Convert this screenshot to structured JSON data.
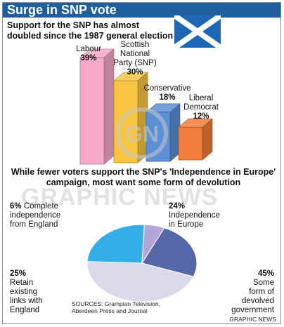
{
  "title": "Surge in SNP vote",
  "chart_data": [
    {
      "type": "bar",
      "title": "Support for the SNP has almost doubled since the 1987 general election",
      "categories": [
        "Labour",
        "Scottish National Party (SNP)",
        "Conservative",
        "Liberal Democrat"
      ],
      "labels": [
        [
          "Labour"
        ],
        [
          "Scottish",
          "National",
          "Party (SNP)"
        ],
        [
          "Conservative"
        ],
        [
          "Liberal",
          "Democrat"
        ]
      ],
      "value_labels": [
        "39%",
        "30%",
        "18%",
        "12%"
      ],
      "values": [
        39,
        30,
        18,
        12
      ],
      "colors": [
        "#f6a9c8",
        "#f7c542",
        "#5b8fd6",
        "#f07d3a"
      ],
      "ylim": [
        0,
        40
      ]
    },
    {
      "type": "pie",
      "title": "While fewer voters support the SNP's 'Independence in Europe' campaign, most want some form of devolution",
      "slices": [
        {
          "label": [
            "Independence",
            "in Europe"
          ],
          "value": 24,
          "value_label": "24%",
          "color": "#5667a8"
        },
        {
          "label": [
            "Some",
            "form of",
            "devolved",
            "government"
          ],
          "value": 45,
          "value_label": "45%",
          "color": "#d9d9ea"
        },
        {
          "label": [
            "Retain",
            "existing",
            "links with",
            "England"
          ],
          "value": 25,
          "value_label": "25%",
          "color": "#34aee8"
        },
        {
          "label": [
            "Complete",
            "independence",
            "from England"
          ],
          "value": 6,
          "value_label": "6%",
          "color": "#b4a6d8"
        }
      ]
    }
  ],
  "sources": [
    "SOURCES: Grampian Television,",
    "Aberdeen Press and Journal"
  ],
  "credit": "GRAPHIC NEWS",
  "watermark": "GRAPHIC NEWS",
  "logo_text": "GN"
}
